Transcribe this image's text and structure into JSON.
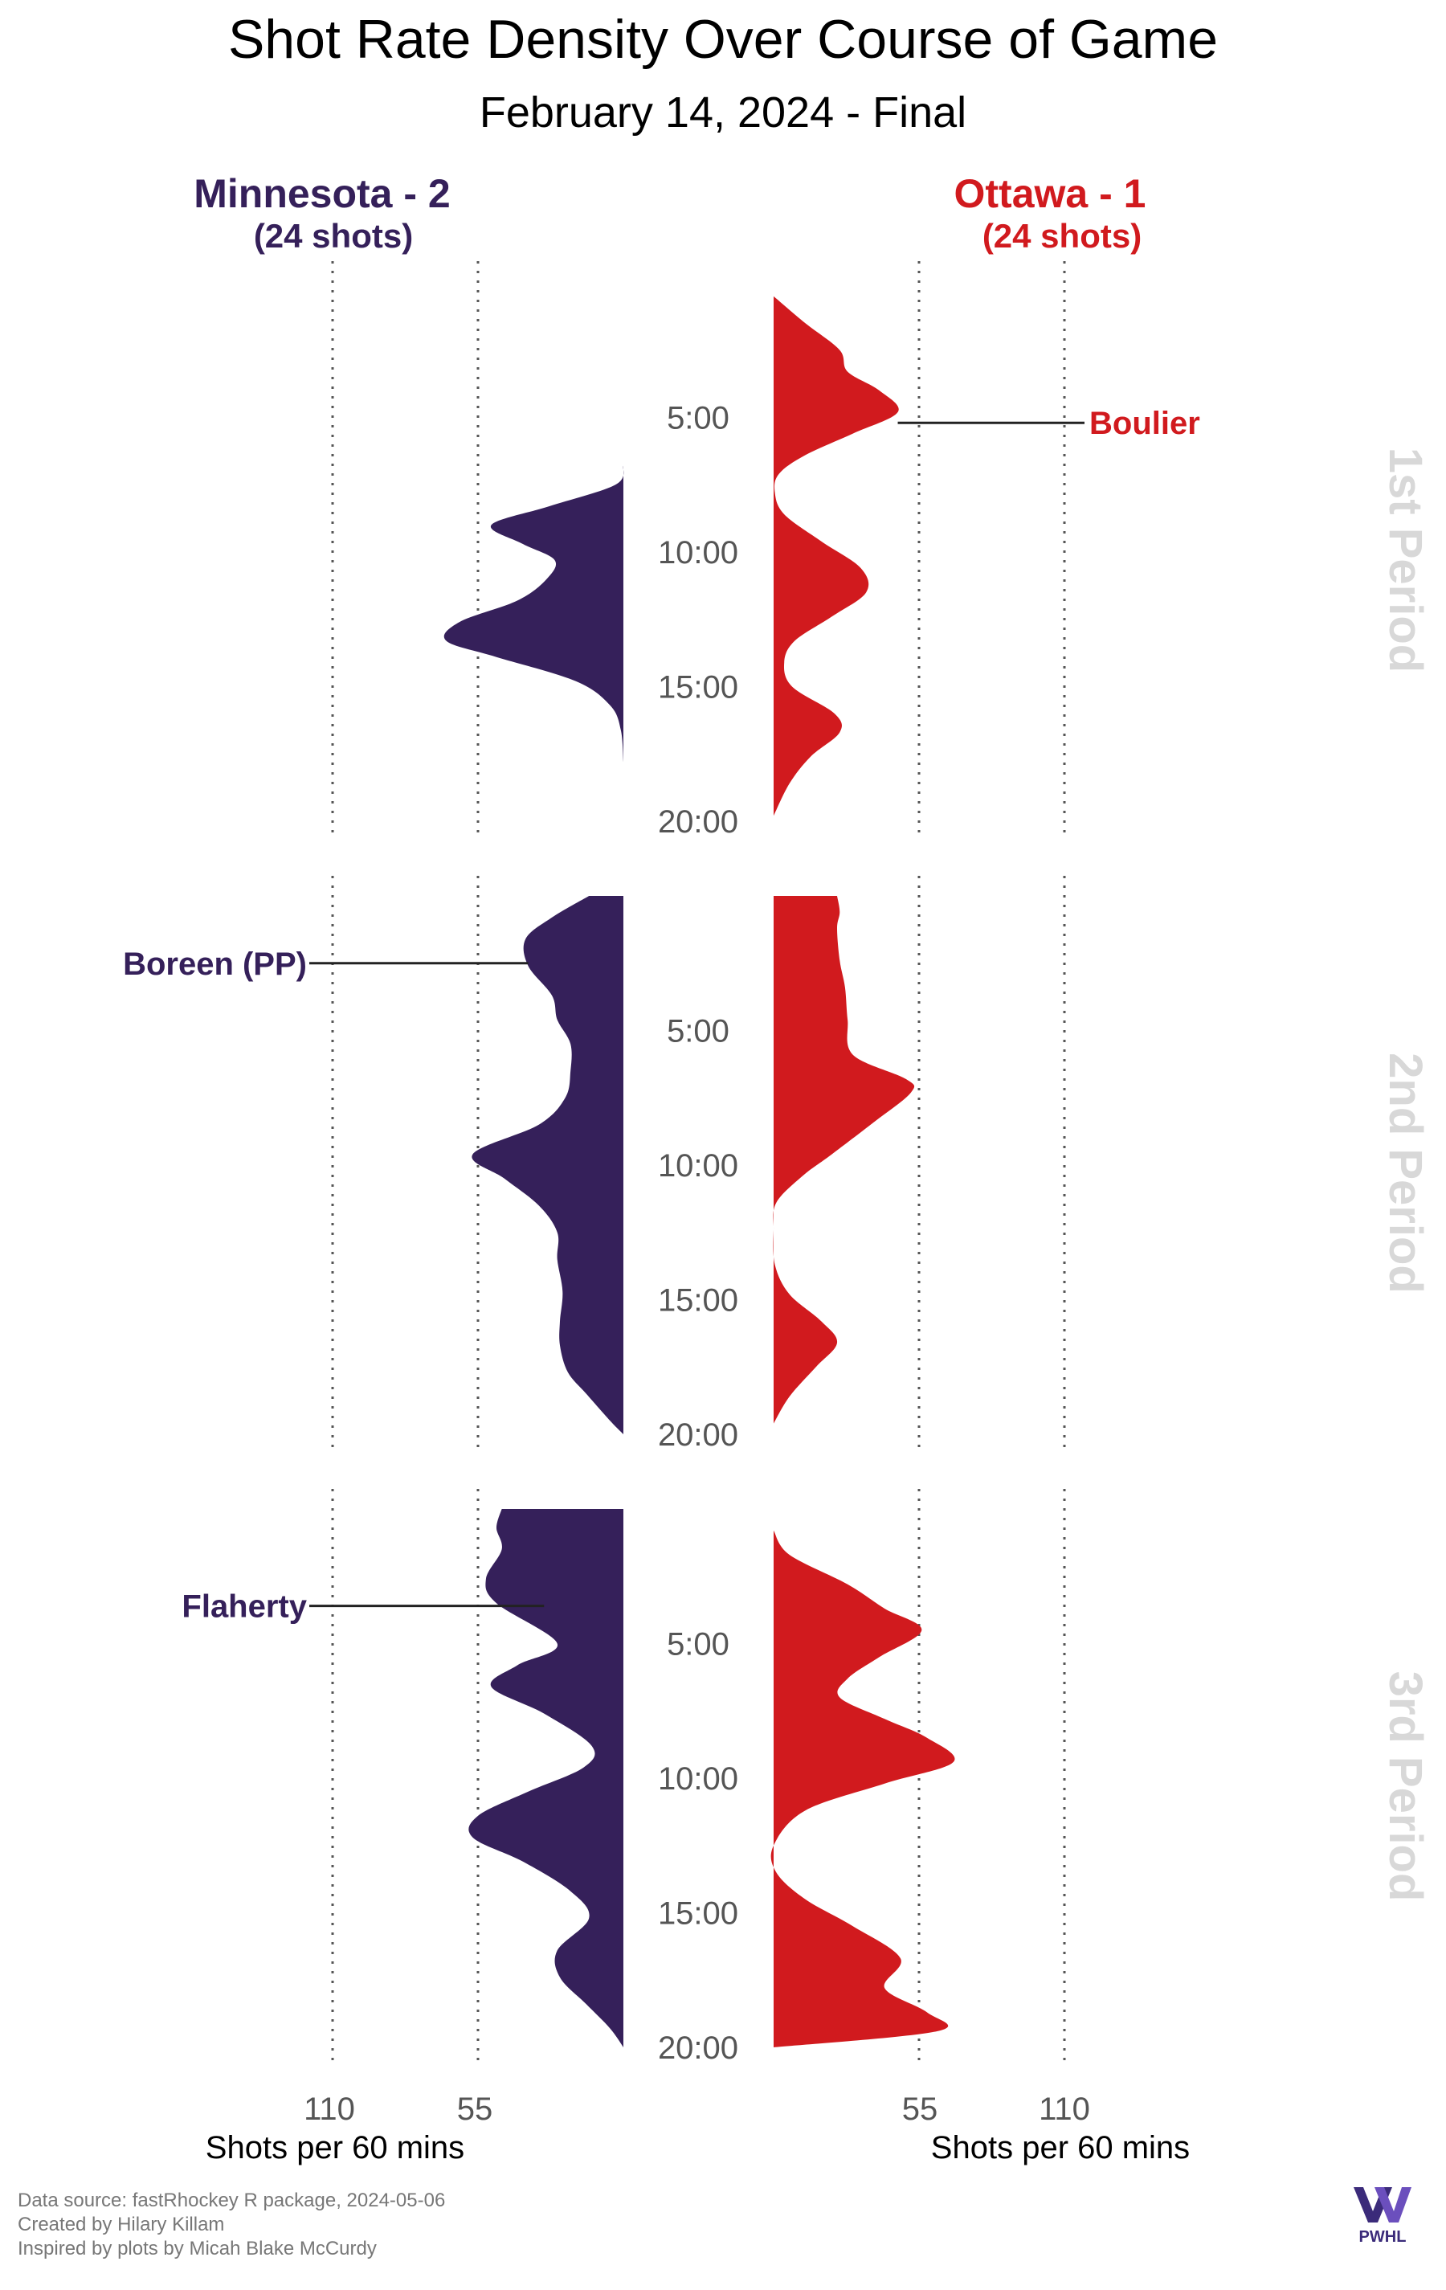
{
  "title": "Shot Rate Density Over Course of Game",
  "subtitle": "February 14, 2024 - Final",
  "teams": {
    "home": {
      "name": "Minnesota - 2",
      "shots": "(24 shots)",
      "color": "#35205a"
    },
    "away": {
      "name": "Ottawa - 1",
      "shots": "(24 shots)",
      "color": "#d11a1e"
    }
  },
  "axis": {
    "left_ticks": [
      "110",
      "55"
    ],
    "right_ticks": [
      "55",
      "110"
    ],
    "left_label": "Shots per 60 mins",
    "right_label": "Shots per 60 mins"
  },
  "credits": {
    "line1": "Data source: fastRhockey R package, 2024-05-06",
    "line2": "Created by Hilary Killam",
    "line3": "Inspired by plots by Micah Blake McCurdy"
  },
  "logo": {
    "text": "PWHL"
  },
  "chart_data": {
    "type": "area",
    "orientation": "mirrored-vertical-density",
    "x_unit": "minutes into period",
    "value_unit": "Shots per 60 mins",
    "value_range": [
      0,
      110
    ],
    "gridlines": [
      55,
      110
    ],
    "time_ticks": [
      "5:00",
      "10:00",
      "15:00",
      "20:00"
    ],
    "periods": [
      {
        "name": "1st Period",
        "home_start": 6.8,
        "home_end": 17.8,
        "home": [
          [
            6.8,
            0
          ],
          [
            7.5,
            3
          ],
          [
            8.3,
            28
          ],
          [
            9,
            50
          ],
          [
            9.7,
            38
          ],
          [
            10.3,
            26
          ],
          [
            11,
            29
          ],
          [
            11.8,
            40
          ],
          [
            12.6,
            62
          ],
          [
            13.3,
            67
          ],
          [
            13.9,
            48
          ],
          [
            14.8,
            18
          ],
          [
            15.7,
            5
          ],
          [
            16.6,
            1
          ],
          [
            17.8,
            0
          ]
        ],
        "away_start": 0.5,
        "away_end": 19.8,
        "away": [
          [
            0.5,
            0
          ],
          [
            1.5,
            12
          ],
          [
            2.5,
            25
          ],
          [
            3.3,
            28
          ],
          [
            4,
            40
          ],
          [
            4.8,
            47
          ],
          [
            5.6,
            30
          ],
          [
            6.4,
            12
          ],
          [
            7.1,
            2
          ],
          [
            7.8,
            0.5
          ],
          [
            8.6,
            4
          ],
          [
            9.6,
            18
          ],
          [
            10.6,
            33
          ],
          [
            11.5,
            35
          ],
          [
            12.4,
            22
          ],
          [
            13.3,
            8
          ],
          [
            14.1,
            4
          ],
          [
            15,
            7
          ],
          [
            16,
            23
          ],
          [
            16.7,
            25
          ],
          [
            17.6,
            14
          ],
          [
            18.6,
            6
          ],
          [
            19.8,
            0
          ]
        ]
      },
      {
        "name": "2nd Period",
        "home_start": 0,
        "home_end": 20,
        "home": [
          [
            0,
            13
          ],
          [
            0.8,
            27
          ],
          [
            1.6,
            37
          ],
          [
            2.6,
            36
          ],
          [
            3.7,
            27
          ],
          [
            4.6,
            25
          ],
          [
            5.5,
            20
          ],
          [
            6.5,
            20
          ],
          [
            7.5,
            22
          ],
          [
            8.5,
            32
          ],
          [
            9.6,
            57
          ],
          [
            10.5,
            45
          ],
          [
            11.5,
            32
          ],
          [
            12.5,
            25
          ],
          [
            13.5,
            25
          ],
          [
            14.7,
            23
          ],
          [
            15.8,
            24
          ],
          [
            16.7,
            24
          ],
          [
            17.7,
            21
          ],
          [
            18.5,
            14
          ],
          [
            19.5,
            5
          ],
          [
            20,
            0
          ]
        ],
        "away_start": 0,
        "away_end": 20,
        "away": [
          [
            0,
            24
          ],
          [
            0.6,
            25
          ],
          [
            1.2,
            24
          ],
          [
            2.4,
            25
          ],
          [
            3.4,
            27
          ],
          [
            4.6,
            28
          ],
          [
            5.9,
            30
          ],
          [
            6.8,
            50
          ],
          [
            7.3,
            52
          ],
          [
            8.4,
            38
          ],
          [
            9.6,
            22
          ],
          [
            10.4,
            11
          ],
          [
            11.4,
            1
          ],
          [
            12.4,
            0
          ],
          [
            13.7,
            0.5
          ],
          [
            14.8,
            6
          ],
          [
            15.8,
            18
          ],
          [
            16.6,
            24
          ],
          [
            17.5,
            16
          ],
          [
            18.6,
            6
          ],
          [
            19.6,
            0
          ]
        ]
      },
      {
        "name": "3rd Period",
        "home_start": 0,
        "home_end": 20,
        "home": [
          [
            0,
            46
          ],
          [
            0.7,
            48
          ],
          [
            1.5,
            46
          ],
          [
            2.6,
            52
          ],
          [
            3.5,
            48
          ],
          [
            5,
            25
          ],
          [
            5.8,
            40
          ],
          [
            6.6,
            50
          ],
          [
            7.6,
            30
          ],
          [
            8.8,
            12
          ],
          [
            9.6,
            15
          ],
          [
            10.5,
            36
          ],
          [
            11.4,
            55
          ],
          [
            12.2,
            57
          ],
          [
            13.1,
            38
          ],
          [
            14.2,
            20
          ],
          [
            15.2,
            13
          ],
          [
            16.4,
            25
          ],
          [
            17.4,
            24
          ],
          [
            18.4,
            14
          ],
          [
            19.3,
            5
          ],
          [
            20,
            0
          ]
        ],
        "away_start": 0.8,
        "away_end": 20,
        "away": [
          [
            0.8,
            0
          ],
          [
            1.7,
            6
          ],
          [
            2.8,
            28
          ],
          [
            3.7,
            42
          ],
          [
            4.5,
            56
          ],
          [
            5.5,
            40
          ],
          [
            6.3,
            28
          ],
          [
            7,
            25
          ],
          [
            7.8,
            42
          ],
          [
            8.5,
            58
          ],
          [
            9.4,
            68
          ],
          [
            10.2,
            42
          ],
          [
            11.2,
            12
          ],
          [
            12.5,
            0
          ],
          [
            13.5,
            1
          ],
          [
            14.5,
            12
          ],
          [
            15.5,
            30
          ],
          [
            16.7,
            48
          ],
          [
            17.8,
            42
          ],
          [
            18.7,
            58
          ],
          [
            19.4,
            62
          ],
          [
            20,
            0
          ]
        ]
      }
    ],
    "goals": [
      {
        "label": "Boulier",
        "team": "away",
        "period": 1,
        "time": 5.2
      },
      {
        "label": "Boreen (PP)",
        "team": "home",
        "period": 2,
        "time": 2.5
      },
      {
        "label": "Flaherty",
        "team": "home",
        "period": 3,
        "time": 3.6
      }
    ]
  }
}
